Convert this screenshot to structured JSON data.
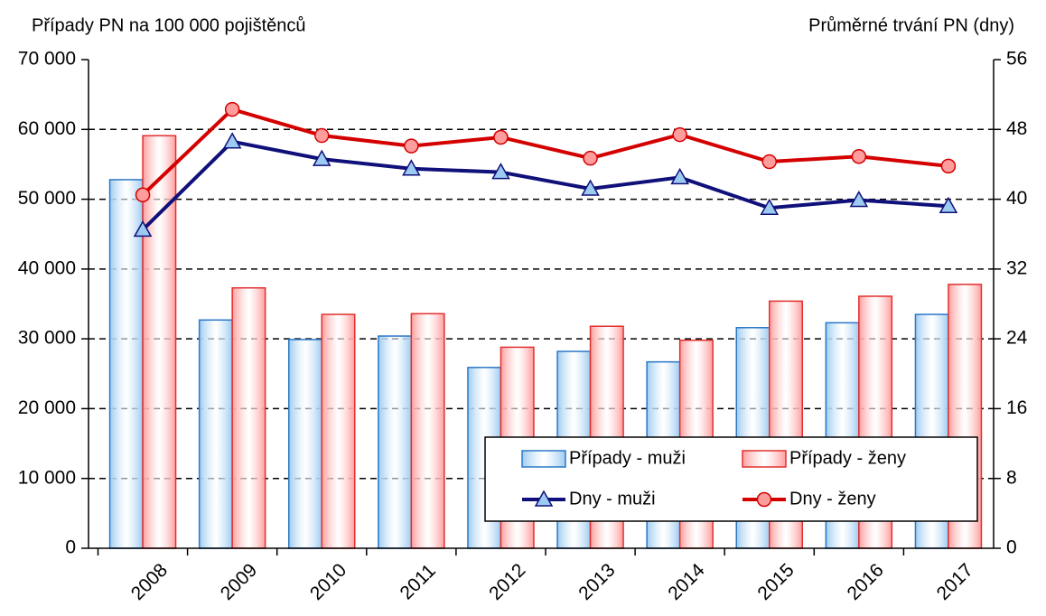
{
  "chart_data": {
    "type": "bar",
    "y_label": "Případy PN na 100 000 pojištěnců",
    "y2_label": "Průměrné trvání PN (dny)",
    "categories": [
      "2008",
      "2009",
      "2010",
      "2011",
      "2012",
      "2013",
      "2014",
      "2015",
      "2016",
      "2017"
    ],
    "series": [
      {
        "name": "Případy - muži",
        "type": "bar",
        "color": "#9ccbf1",
        "border": "#2b78c6",
        "values": [
          52800,
          32700,
          29900,
          30400,
          25900,
          28200,
          26700,
          31600,
          32300,
          33500
        ]
      },
      {
        "name": "Případy - ženy",
        "type": "bar",
        "color": "#ff9c9c",
        "border": "#e0302f",
        "values": [
          59100,
          37300,
          33500,
          33600,
          28800,
          31800,
          29800,
          35400,
          36100,
          37800
        ]
      },
      {
        "name": "Dny - muži",
        "type": "line",
        "axis": "y2",
        "marker": "triangle",
        "color": "#10107a",
        "marker_color": "#9ccbf1",
        "values": [
          36.5,
          46.6,
          44.6,
          43.5,
          43.1,
          41.2,
          42.5,
          39.0,
          39.9,
          39.2
        ]
      },
      {
        "name": "Dny - ženy",
        "type": "line",
        "axis": "y2",
        "marker": "circle",
        "color": "#d40000",
        "marker_color": "#ff9c9c",
        "values": [
          40.5,
          50.3,
          47.3,
          46.1,
          47.1,
          44.7,
          47.4,
          44.3,
          44.9,
          43.8
        ]
      }
    ],
    "ylim": [
      0,
      70000
    ],
    "yticks": [
      {
        "value": 0,
        "label": "0"
      },
      {
        "value": 10000,
        "label": "10 000"
      },
      {
        "value": 20000,
        "label": "20 000"
      },
      {
        "value": 30000,
        "label": "30 000"
      },
      {
        "value": 40000,
        "label": "40 000"
      },
      {
        "value": 50000,
        "label": "50 000"
      },
      {
        "value": 60000,
        "label": "60 000"
      },
      {
        "value": 70000,
        "label": "70 000"
      }
    ],
    "y2lim": [
      0,
      56
    ],
    "y2ticks": [
      0,
      8,
      16,
      24,
      32,
      40,
      48,
      56
    ],
    "grid": true
  }
}
